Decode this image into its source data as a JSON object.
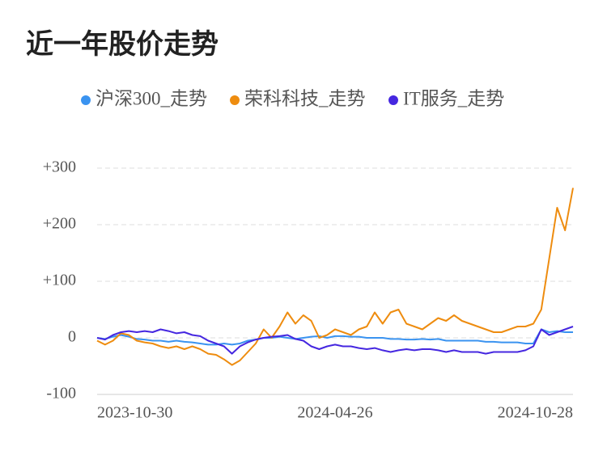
{
  "chart_data": {
    "type": "line",
    "title": "近一年股价走势",
    "categories": [
      "2023-10-30",
      null,
      null,
      null,
      null,
      null,
      null,
      null,
      null,
      null,
      null,
      null,
      null,
      null,
      null,
      null,
      null,
      null,
      null,
      null,
      null,
      null,
      null,
      null,
      null,
      null,
      null,
      null,
      null,
      null,
      "2024-04-26",
      null,
      null,
      null,
      null,
      null,
      null,
      null,
      null,
      null,
      null,
      null,
      null,
      null,
      null,
      null,
      null,
      null,
      null,
      null,
      null,
      null,
      null,
      null,
      null,
      null,
      null,
      null,
      null,
      null,
      "2024-10-28"
    ],
    "series": [
      {
        "name": "沪深300_走势",
        "color": "#3a93f0",
        "values": [
          0,
          -2,
          2,
          5,
          2,
          -2,
          -3,
          -5,
          -5,
          -7,
          -5,
          -7,
          -8,
          -10,
          -12,
          -12,
          -10,
          -12,
          -10,
          -5,
          -3,
          0,
          0,
          2,
          0,
          -2,
          0,
          2,
          3,
          0,
          3,
          3,
          2,
          2,
          0,
          0,
          0,
          -2,
          -2,
          -3,
          -3,
          -2,
          -3,
          -2,
          -5,
          -5,
          -5,
          -5,
          -5,
          -7,
          -7,
          -8,
          -8,
          -8,
          -10,
          -10,
          15,
          10,
          12,
          10,
          10
        ]
      },
      {
        "name": "荣科科技_走势",
        "color": "#ee8c0f",
        "values": [
          -5,
          -12,
          -5,
          8,
          5,
          -5,
          -8,
          -10,
          -15,
          -18,
          -15,
          -20,
          -15,
          -20,
          -28,
          -30,
          -38,
          -48,
          -40,
          -25,
          -10,
          15,
          0,
          20,
          45,
          25,
          40,
          30,
          0,
          5,
          15,
          10,
          5,
          15,
          20,
          45,
          25,
          45,
          50,
          25,
          20,
          15,
          25,
          35,
          30,
          40,
          30,
          25,
          20,
          15,
          10,
          10,
          15,
          20,
          20,
          25,
          50,
          140,
          230,
          190,
          265
        ]
      },
      {
        "name": "IT服务_走势",
        "color": "#4527e0",
        "values": [
          0,
          -3,
          5,
          10,
          12,
          10,
          12,
          10,
          15,
          12,
          8,
          10,
          5,
          3,
          -5,
          -10,
          -15,
          -28,
          -15,
          -8,
          -3,
          0,
          2,
          3,
          5,
          -2,
          -5,
          -15,
          -20,
          -15,
          -12,
          -15,
          -15,
          -18,
          -20,
          -18,
          -22,
          -25,
          -22,
          -20,
          -22,
          -20,
          -20,
          -22,
          -25,
          -22,
          -25,
          -25,
          -25,
          -28,
          -25,
          -25,
          -25,
          -25,
          -22,
          -15,
          15,
          5,
          10,
          15,
          20
        ]
      }
    ],
    "ylim": [
      -100,
      300
    ],
    "yticks": [
      -100,
      0,
      {
        "value": 100,
        "label": "+100"
      },
      {
        "value": 200,
        "label": "+200"
      },
      {
        "value": 300,
        "label": "+300"
      }
    ],
    "grid": true
  }
}
